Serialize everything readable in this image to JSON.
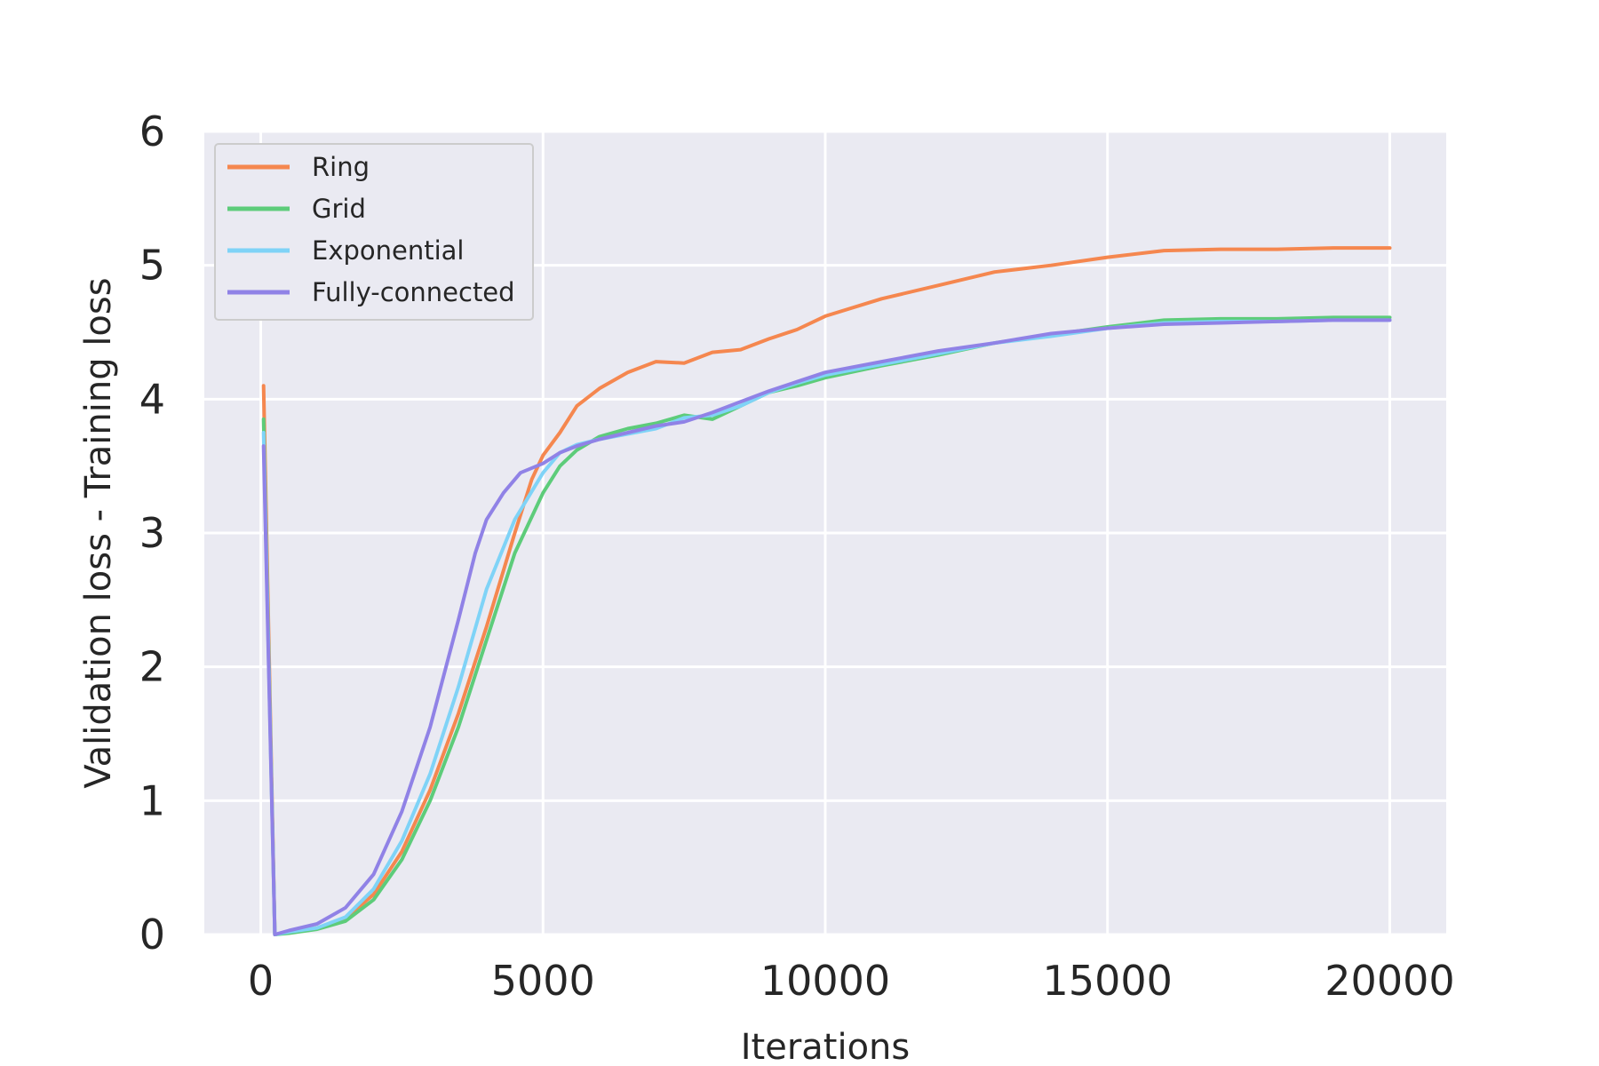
{
  "chart_data": {
    "type": "line",
    "title": "",
    "xlabel": "Iterations",
    "ylabel": "Validation loss - Training loss",
    "xlim": [
      -1000,
      21000
    ],
    "ylim": [
      0,
      6
    ],
    "xticks": [
      0,
      5000,
      10000,
      15000,
      20000
    ],
    "yticks": [
      0,
      1,
      2,
      3,
      4,
      5,
      6
    ],
    "grid": true,
    "legend": "top-left",
    "colors": {
      "background": "#eaeaf2",
      "grid": "#ffffff",
      "Ring": "#f5874f",
      "Grid": "#5dcc7a",
      "Exponential": "#7fd3f7",
      "Fully-connected": "#9082e6"
    },
    "series": [
      {
        "name": "Ring",
        "x": [
          50,
          250,
          500,
          1000,
          1500,
          2000,
          2500,
          3000,
          3500,
          4000,
          4500,
          4800,
          5000,
          5300,
          5600,
          6000,
          6500,
          7000,
          7500,
          8000,
          8500,
          9000,
          9500,
          10000,
          11000,
          12000,
          13000,
          14000,
          15000,
          16000,
          17000,
          18000,
          19000,
          20000
        ],
        "y": [
          4.1,
          0.0,
          0.02,
          0.05,
          0.12,
          0.3,
          0.62,
          1.08,
          1.65,
          2.3,
          3.0,
          3.4,
          3.58,
          3.75,
          3.95,
          4.08,
          4.2,
          4.28,
          4.27,
          4.35,
          4.37,
          4.45,
          4.52,
          4.62,
          4.75,
          4.85,
          4.95,
          5.0,
          5.06,
          5.11,
          5.12,
          5.12,
          5.13,
          5.13
        ]
      },
      {
        "name": "Grid",
        "x": [
          50,
          250,
          500,
          1000,
          1500,
          2000,
          2500,
          3000,
          3500,
          4000,
          4500,
          5000,
          5300,
          5600,
          6000,
          6500,
          7000,
          7500,
          8000,
          8500,
          9000,
          9500,
          10000,
          11000,
          12000,
          13000,
          14000,
          15000,
          16000,
          17000,
          18000,
          19000,
          20000
        ],
        "y": [
          3.85,
          0.0,
          0.01,
          0.04,
          0.1,
          0.26,
          0.56,
          1.0,
          1.55,
          2.2,
          2.85,
          3.3,
          3.5,
          3.62,
          3.72,
          3.78,
          3.82,
          3.88,
          3.85,
          3.95,
          4.05,
          4.1,
          4.16,
          4.25,
          4.33,
          4.42,
          4.48,
          4.54,
          4.59,
          4.6,
          4.6,
          4.61,
          4.61
        ]
      },
      {
        "name": "Exponential",
        "x": [
          50,
          250,
          500,
          1000,
          1500,
          2000,
          2500,
          3000,
          3500,
          4000,
          4500,
          5000,
          5300,
          5600,
          6000,
          6500,
          7000,
          7500,
          8000,
          8500,
          9000,
          9500,
          10000,
          11000,
          12000,
          13000,
          14000,
          15000,
          16000,
          17000,
          18000,
          19000,
          20000
        ],
        "y": [
          3.75,
          0.0,
          0.02,
          0.05,
          0.13,
          0.34,
          0.7,
          1.2,
          1.85,
          2.58,
          3.1,
          3.45,
          3.6,
          3.66,
          3.7,
          3.74,
          3.78,
          3.86,
          3.88,
          3.95,
          4.05,
          4.12,
          4.18,
          4.26,
          4.34,
          4.42,
          4.47,
          4.53,
          4.57,
          4.58,
          4.58,
          4.59,
          4.59
        ]
      },
      {
        "name": "Fully-connected",
        "x": [
          50,
          250,
          500,
          1000,
          1500,
          2000,
          2500,
          3000,
          3500,
          3800,
          4000,
          4300,
          4600,
          5000,
          5300,
          5600,
          6000,
          6500,
          7000,
          7500,
          8000,
          8500,
          9000,
          9500,
          10000,
          11000,
          12000,
          13000,
          14000,
          15000,
          16000,
          17000,
          18000,
          19000,
          20000
        ],
        "y": [
          3.65,
          0.0,
          0.03,
          0.08,
          0.2,
          0.45,
          0.92,
          1.55,
          2.35,
          2.85,
          3.1,
          3.3,
          3.45,
          3.52,
          3.6,
          3.65,
          3.7,
          3.75,
          3.8,
          3.83,
          3.9,
          3.98,
          4.06,
          4.13,
          4.2,
          4.28,
          4.36,
          4.42,
          4.49,
          4.53,
          4.56,
          4.57,
          4.58,
          4.59,
          4.59
        ]
      }
    ]
  }
}
